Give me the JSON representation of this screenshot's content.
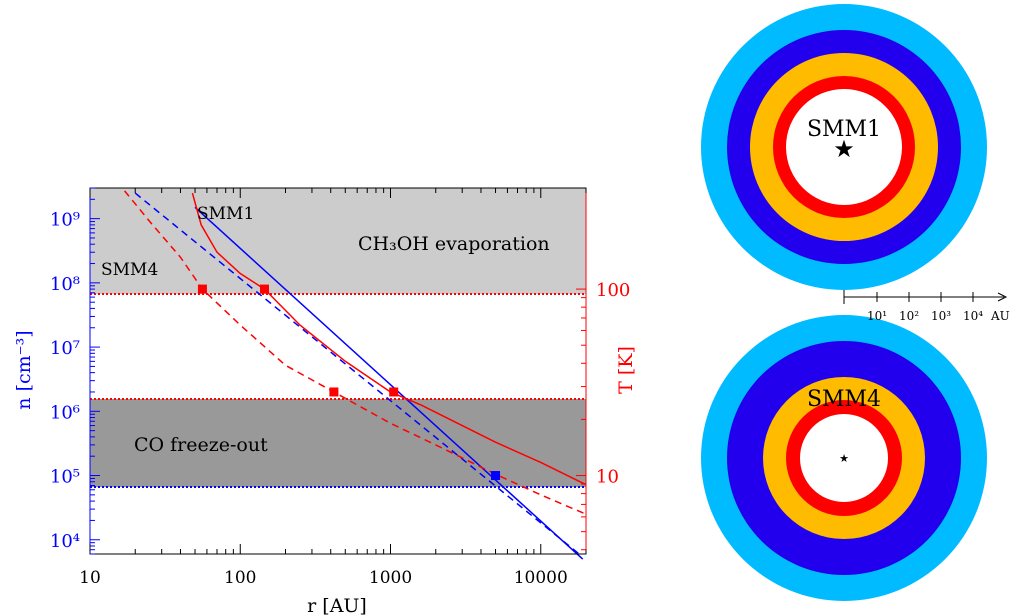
{
  "chart_data": [
    {
      "type": "line",
      "xscale": "log",
      "xlim": [
        10,
        20000
      ],
      "xlabel": "r [AU]",
      "xticks": [
        "10",
        "100",
        "1000",
        "10000"
      ],
      "left_axis": {
        "label": "n [cm⁻³]",
        "scale": "log",
        "ylim": [
          6000,
          3000000000
        ],
        "color": "#0000ff",
        "ticks": [
          "10⁴",
          "10⁵",
          "10⁶",
          "10⁷",
          "10⁸",
          "10⁹"
        ]
      },
      "right_axis": {
        "label": "T [K]",
        "scale": "log",
        "color": "#ff0000",
        "ticks": [
          "10",
          "100"
        ]
      },
      "bands": [
        {
          "label": "CH₃OH evaporation",
          "n_range": [
            80000000,
            3000000000
          ],
          "color": "#cccccc"
        },
        {
          "label": "CO freeze-out",
          "n_range": [
            100000,
            2000000
          ],
          "color": "#999999"
        }
      ],
      "thresholds": [
        {
          "n": 80000000,
          "color": "#ff0000",
          "style": "dotted"
        },
        {
          "n": 2000000,
          "color": "#ff0000",
          "style": "dotted"
        },
        {
          "n": 100000,
          "color": "#0000ff",
          "style": "dotted"
        }
      ],
      "series": [
        {
          "name": "SMM1",
          "quantity": "density",
          "color": "#0000ff",
          "dash": "solid",
          "x": [
            50,
            19000
          ],
          "y": [
            1500000000,
            5000
          ]
        },
        {
          "name": "SMM4",
          "quantity": "density",
          "color": "#0000ff",
          "dash": "dashed",
          "x": [
            20,
            18000
          ],
          "y": [
            2500000000,
            6000
          ]
        },
        {
          "name": "SMM1",
          "quantity": "temperature",
          "color": "#ff0000",
          "dash": "solid",
          "x": [
            48,
            55,
            70,
            100,
            145,
            250,
            500,
            1000,
            1600,
            3000,
            5000,
            10000,
            20000
          ],
          "y": [
            2500000000.0,
            800000000.0,
            300000000.0,
            140000000.0,
            80000000.0,
            22000000.0,
            6000000.0,
            2000000.0,
            1250000.0,
            600000.0,
            330000.0,
            160000.0,
            72000.0
          ]
        },
        {
          "name": "SMM4",
          "quantity": "temperature",
          "color": "#ff0000",
          "dash": "dashed",
          "x": [
            17,
            25,
            40,
            56,
            100,
            200,
            420,
            1000,
            2000,
            5000,
            10000,
            20000
          ],
          "y": [
            2700000000.0,
            900000000.0,
            250000000.0,
            80000000.0,
            22000000.0,
            5200000.0,
            2000000.0,
            650000.0,
            300000.0,
            105000.0,
            50000.0,
            25000.0
          ]
        }
      ],
      "markers": [
        {
          "x": 56,
          "n": 80000000,
          "color": "#ff0000"
        },
        {
          "x": 145,
          "n": 80000000,
          "color": "#ff0000"
        },
        {
          "x": 420,
          "n": 2000000,
          "color": "#ff0000"
        },
        {
          "x": 1050,
          "n": 2000000,
          "color": "#ff0000"
        },
        {
          "x": 5000,
          "n": 100000,
          "color": "#0000ff"
        }
      ],
      "annotations": [
        "SMM1",
        "SMM4"
      ]
    },
    {
      "type": "diagram",
      "name": "SMM1",
      "label": "SMM1",
      "ring_colors": [
        "#00bbff",
        "#2200ee",
        "#ffbb00",
        "#ff0000",
        "#ffffff"
      ],
      "star": "★"
    },
    {
      "type": "diagram",
      "name": "SMM4",
      "label": "SMM4",
      "ring_colors": [
        "#00bbff",
        "#2200ee",
        "#ffbb00",
        "#ff0000",
        "#ffffff"
      ],
      "star": "★"
    }
  ],
  "scale_bar": {
    "ticks": [
      "10¹",
      "10²",
      "10³",
      "10⁴"
    ],
    "unit": "AU"
  }
}
